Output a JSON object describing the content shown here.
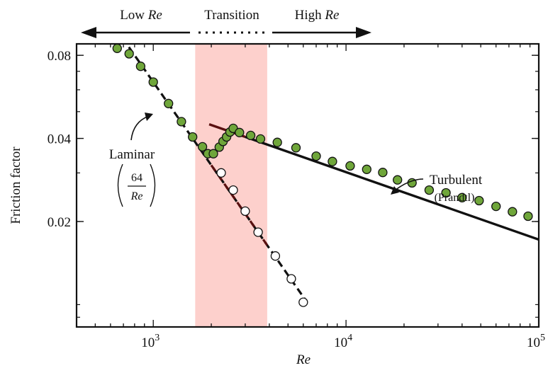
{
  "chart_data": {
    "type": "scatter",
    "ylabel": "Friction factor",
    "xlabel": "Re",
    "x_scale": "log",
    "y_scale": "log",
    "xlim": [
      400,
      100000
    ],
    "ylim": [
      0.0083,
      0.088
    ],
    "x_ticks": [
      {
        "value": 1000,
        "base": "10",
        "exp": "3"
      },
      {
        "value": 10000,
        "base": "10",
        "exp": "4"
      },
      {
        "value": 100000,
        "base": "10",
        "exp": "5"
      }
    ],
    "y_ticks": [
      {
        "value": 0.02,
        "label": "0.02"
      },
      {
        "value": 0.04,
        "label": "0.04"
      },
      {
        "value": 0.08,
        "label": "0.08"
      }
    ],
    "regimes": {
      "low_prefix": "Low ",
      "low_suffix": "Re",
      "transition": "Transition",
      "high_prefix": "High ",
      "high_suffix": "Re"
    },
    "transition_band": {
      "from": 1650,
      "to": 3900,
      "color": "#fdd0cc"
    },
    "laminar_label": {
      "name": "Laminar",
      "numerator": "64",
      "denominator": "Re"
    },
    "turbulent_label": {
      "name": "Turbulent",
      "sub": "(Prandtl)"
    },
    "laminar_line": {
      "equation": "64/Re",
      "x_range": [
        640,
        6200
      ],
      "color_solid": "#111111",
      "color_dashed_segment": "#5a1010"
    },
    "turbulent_line": {
      "equation": "Prandtl",
      "x_range": [
        1950,
        100000
      ],
      "start_value": 0.045,
      "end_value": 0.0172,
      "color": "#111111",
      "color_start": "#5a1010"
    },
    "series": [
      {
        "fill": "#6fa63a",
        "points": [
          [
            650,
            0.0848
          ],
          [
            750,
            0.081
          ],
          [
            860,
            0.073
          ],
          [
            1000,
            0.064
          ],
          [
            1200,
            0.0535
          ],
          [
            1400,
            0.046
          ],
          [
            1600,
            0.0405
          ],
          [
            1800,
            0.0373
          ],
          [
            1920,
            0.0352
          ],
          [
            2050,
            0.0352
          ],
          [
            2200,
            0.0372
          ],
          [
            2300,
            0.039
          ],
          [
            2400,
            0.0405
          ],
          [
            2500,
            0.0422
          ],
          [
            2600,
            0.0435
          ],
          [
            2800,
            0.042
          ],
          [
            3200,
            0.041
          ],
          [
            3600,
            0.0398
          ],
          [
            4400,
            0.0387
          ],
          [
            5500,
            0.037
          ],
          [
            7000,
            0.0345
          ],
          [
            8500,
            0.033
          ],
          [
            10500,
            0.0318
          ],
          [
            12800,
            0.0309
          ],
          [
            15500,
            0.0301
          ],
          [
            18500,
            0.0283
          ],
          [
            22000,
            0.0276
          ],
          [
            27000,
            0.026
          ],
          [
            33000,
            0.0254
          ],
          [
            40000,
            0.0244
          ],
          [
            49000,
            0.0238
          ],
          [
            60000,
            0.0227
          ],
          [
            73000,
            0.0217
          ],
          [
            88000,
            0.0209
          ]
        ]
      },
      {
        "fill": "#ffffff",
        "points": [
          [
            2250,
            0.03
          ],
          [
            2600,
            0.026
          ],
          [
            3000,
            0.0218
          ],
          [
            3500,
            0.0183
          ],
          [
            4300,
            0.015
          ],
          [
            5200,
            0.0124
          ],
          [
            6000,
            0.0102
          ]
        ]
      }
    ]
  }
}
